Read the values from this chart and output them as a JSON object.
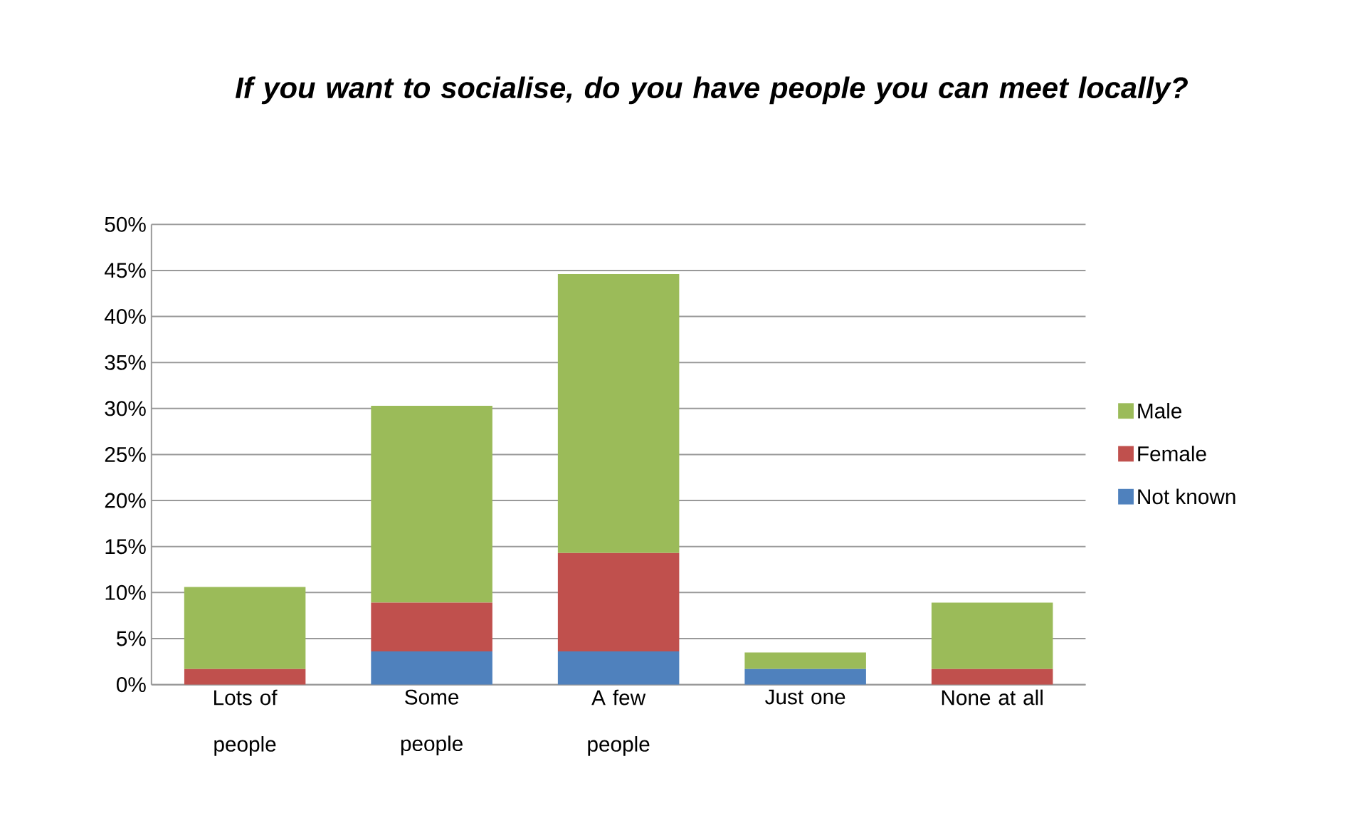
{
  "chart_data": {
    "type": "bar",
    "title": "*If you want to socialise, do you have people you can meet locally?*",
    "categories": [
      "Lots of people",
      "Some people",
      "A few people",
      "Just one",
      "None at all"
    ],
    "stacked": true,
    "series": [
      {
        "name": "Not known",
        "color": "#4f81bd",
        "values": [
          0,
          3.6,
          3.6,
          1.7,
          0
        ]
      },
      {
        "name": "Female",
        "color": "#c0504d",
        "values": [
          1.7,
          5.3,
          10.7,
          0,
          1.7
        ]
      },
      {
        "name": "Male",
        "color": "#9bbb59",
        "values": [
          8.9,
          21.4,
          30.3,
          1.8,
          7.2
        ]
      }
    ],
    "ylim": [
      0,
      50
    ],
    "yticks": [
      {
        "value": 0,
        "label": "0%"
      },
      {
        "value": 5,
        "label": "5%"
      },
      {
        "value": 10,
        "label": "10%"
      },
      {
        "value": 15,
        "label": "15%"
      },
      {
        "value": 20,
        "label": "20%"
      },
      {
        "value": 25,
        "label": "25%"
      },
      {
        "value": 30,
        "label": "30%"
      },
      {
        "value": 35,
        "label": "35%"
      },
      {
        "value": 40,
        "label": "40%"
      },
      {
        "value": 45,
        "label": "45%"
      },
      {
        "value": 50,
        "label": "50%"
      }
    ],
    "grid": "y",
    "legend": "right"
  }
}
